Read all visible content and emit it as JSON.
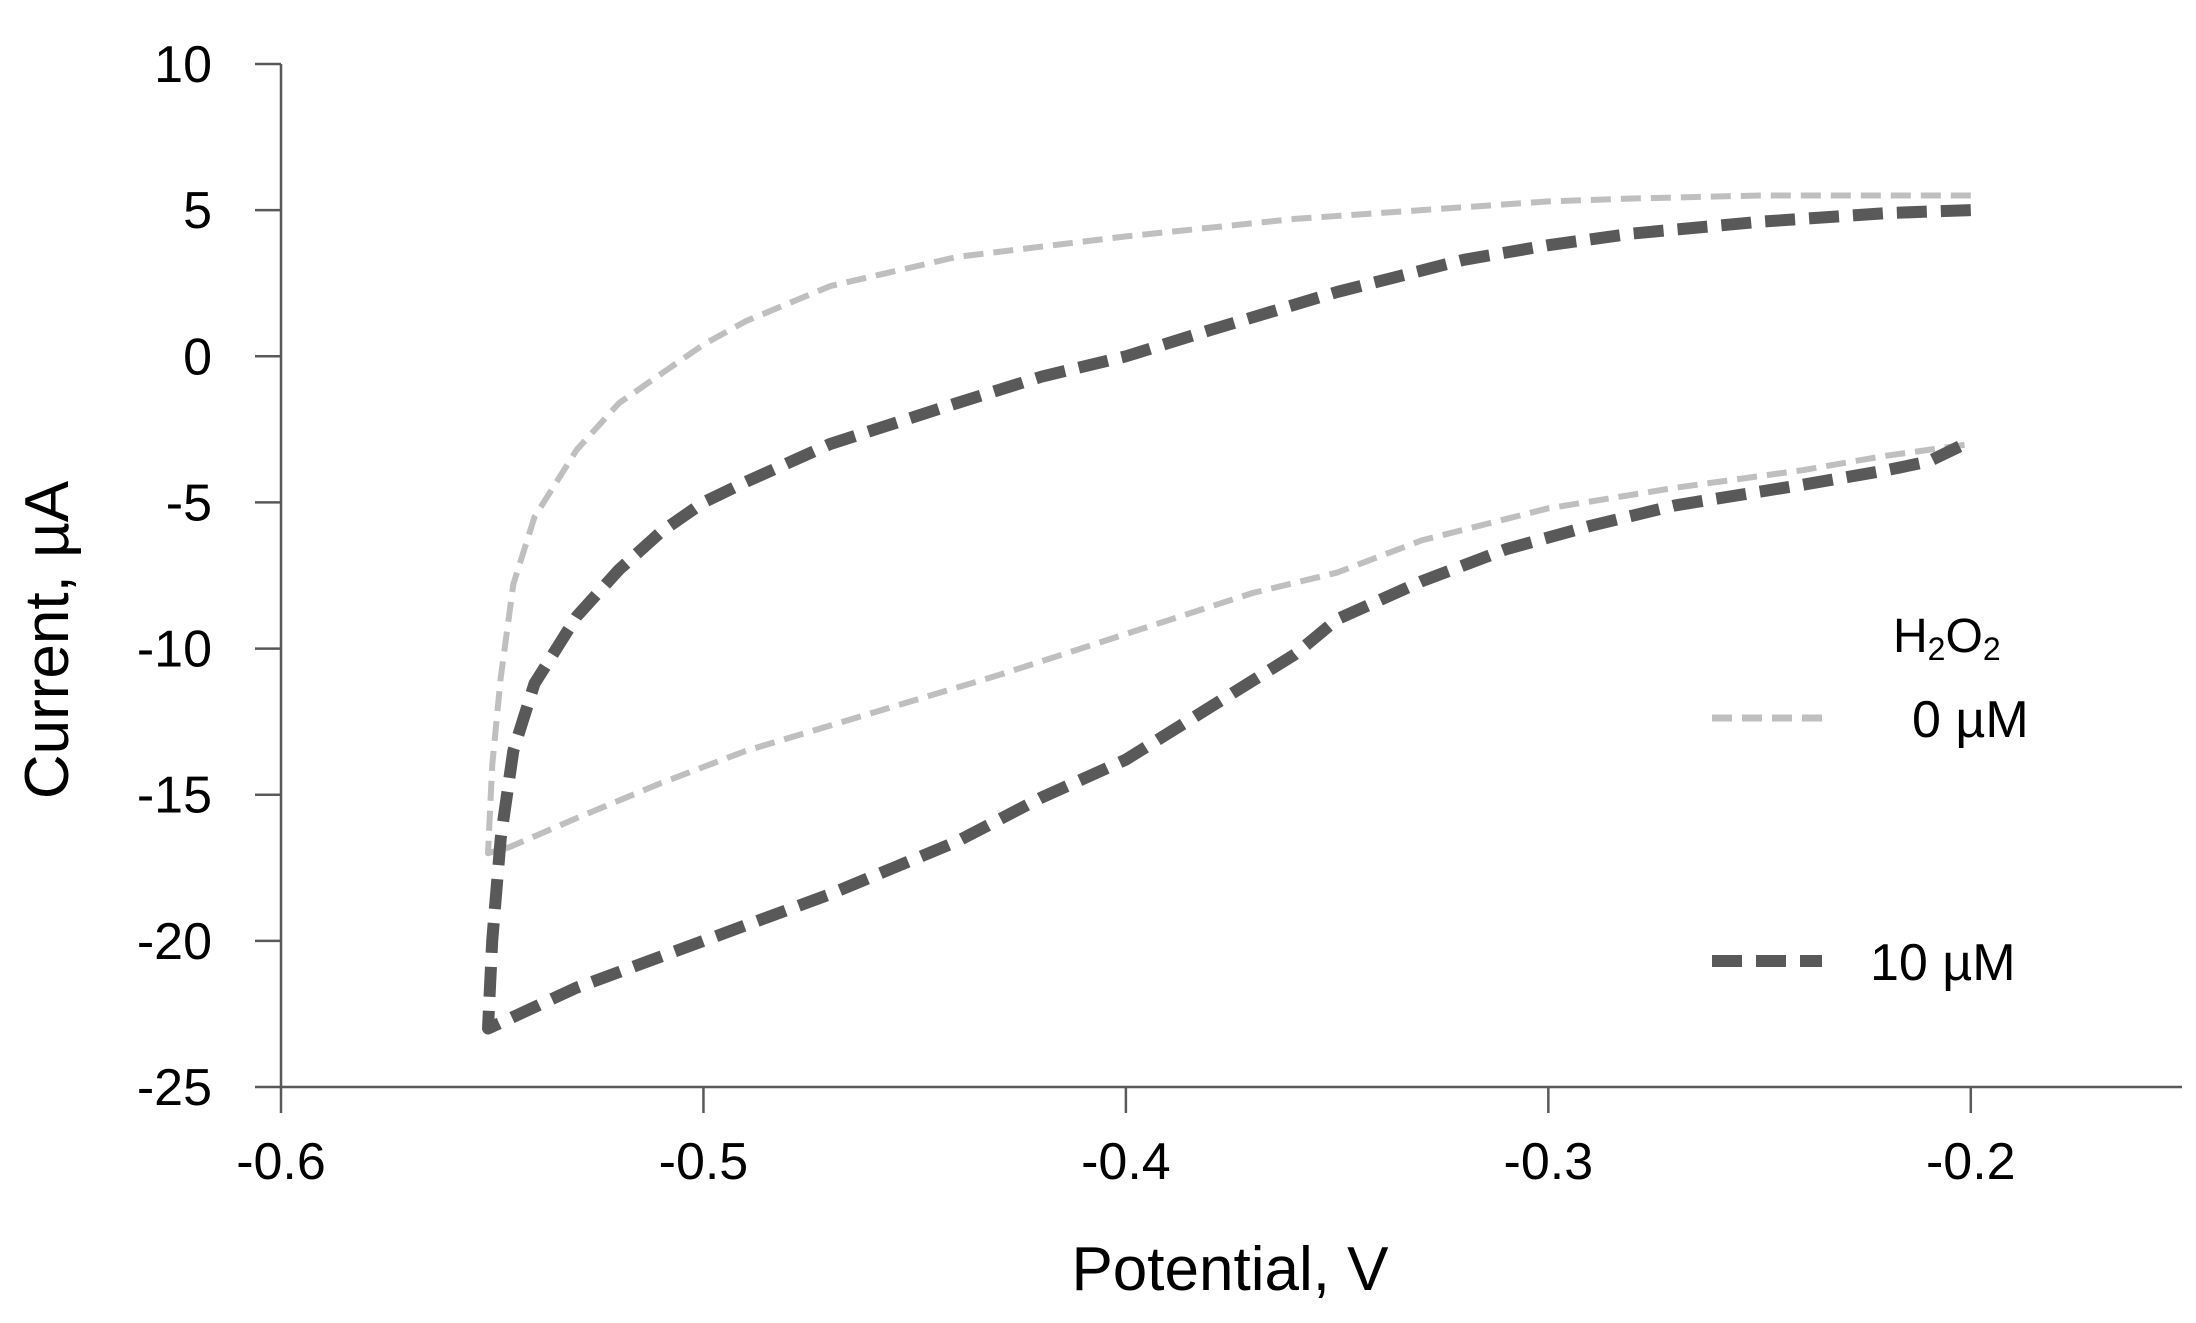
{
  "chart_data": {
    "type": "line",
    "xlabel": "Potential, V",
    "ylabel": "Current, µA",
    "xlim": [
      -0.6,
      -0.15
    ],
    "ylim": [
      -25,
      10
    ],
    "x_ticks": [
      -0.6,
      -0.5,
      -0.4,
      -0.3,
      -0.2
    ],
    "y_ticks": [
      10,
      5,
      0,
      -5,
      -10,
      -15,
      -20,
      -25
    ],
    "x_tick_labels": [
      "-0.6",
      "-0.5",
      "-0.4",
      "-0.3",
      "-0.2"
    ],
    "y_tick_labels": [
      "10",
      "5",
      "0",
      "-5",
      "-10",
      "-15",
      "-20",
      "-25"
    ],
    "grid": false,
    "legend": {
      "title_main": "H",
      "title_sub1": "2",
      "title_mid": "O",
      "title_sub2": "2",
      "placement": "right"
    },
    "series": [
      {
        "name": "0 µM",
        "color": "#bfbfbf",
        "style": "dashed-thin",
        "points": [
          [
            -0.2,
            5.5
          ],
          [
            -0.22,
            5.5
          ],
          [
            -0.25,
            5.5
          ],
          [
            -0.28,
            5.4
          ],
          [
            -0.3,
            5.3
          ],
          [
            -0.33,
            5.0
          ],
          [
            -0.36,
            4.7
          ],
          [
            -0.4,
            4.1
          ],
          [
            -0.44,
            3.4
          ],
          [
            -0.47,
            2.4
          ],
          [
            -0.49,
            1.2
          ],
          [
            -0.5,
            0.4
          ],
          [
            -0.51,
            -0.6
          ],
          [
            -0.52,
            -1.6
          ],
          [
            -0.53,
            -3.2
          ],
          [
            -0.54,
            -5.5
          ],
          [
            -0.545,
            -7.8
          ],
          [
            -0.548,
            -11
          ],
          [
            -0.55,
            -14
          ],
          [
            -0.551,
            -17
          ],
          [
            -0.546,
            -16.8
          ],
          [
            -0.53,
            -15.8
          ],
          [
            -0.51,
            -14.6
          ],
          [
            -0.49,
            -13.5
          ],
          [
            -0.46,
            -12.2
          ],
          [
            -0.43,
            -10.9
          ],
          [
            -0.4,
            -9.5
          ],
          [
            -0.37,
            -8.1
          ],
          [
            -0.35,
            -7.4
          ],
          [
            -0.33,
            -6.3
          ],
          [
            -0.3,
            -5.2
          ],
          [
            -0.27,
            -4.5
          ],
          [
            -0.24,
            -3.9
          ],
          [
            -0.22,
            -3.4
          ],
          [
            -0.2,
            -3.0
          ]
        ]
      },
      {
        "name": "10 µM",
        "color": "#595959",
        "style": "dashed-thick",
        "points": [
          [
            -0.2,
            5.0
          ],
          [
            -0.22,
            4.9
          ],
          [
            -0.25,
            4.6
          ],
          [
            -0.28,
            4.2
          ],
          [
            -0.3,
            3.8
          ],
          [
            -0.32,
            3.3
          ],
          [
            -0.35,
            2.2
          ],
          [
            -0.38,
            0.9
          ],
          [
            -0.4,
            0.0
          ],
          [
            -0.42,
            -0.7
          ],
          [
            -0.44,
            -1.6
          ],
          [
            -0.47,
            -3.0
          ],
          [
            -0.49,
            -4.3
          ],
          [
            -0.5,
            -5.0
          ],
          [
            -0.51,
            -6.0
          ],
          [
            -0.52,
            -7.3
          ],
          [
            -0.53,
            -8.9
          ],
          [
            -0.54,
            -11.2
          ],
          [
            -0.545,
            -13.5
          ],
          [
            -0.548,
            -16.5
          ],
          [
            -0.55,
            -20.0
          ],
          [
            -0.551,
            -23.0
          ],
          [
            -0.548,
            -22.8
          ],
          [
            -0.53,
            -21.6
          ],
          [
            -0.5,
            -20.0
          ],
          [
            -0.47,
            -18.4
          ],
          [
            -0.44,
            -16.6
          ],
          [
            -0.42,
            -15.1
          ],
          [
            -0.4,
            -13.8
          ],
          [
            -0.38,
            -12.0
          ],
          [
            -0.36,
            -10.2
          ],
          [
            -0.35,
            -9.0
          ],
          [
            -0.33,
            -7.7
          ],
          [
            -0.31,
            -6.6
          ],
          [
            -0.29,
            -5.8
          ],
          [
            -0.27,
            -5.1
          ],
          [
            -0.24,
            -4.4
          ],
          [
            -0.22,
            -3.9
          ],
          [
            -0.21,
            -3.6
          ],
          [
            -0.2,
            -2.9
          ]
        ]
      }
    ]
  }
}
